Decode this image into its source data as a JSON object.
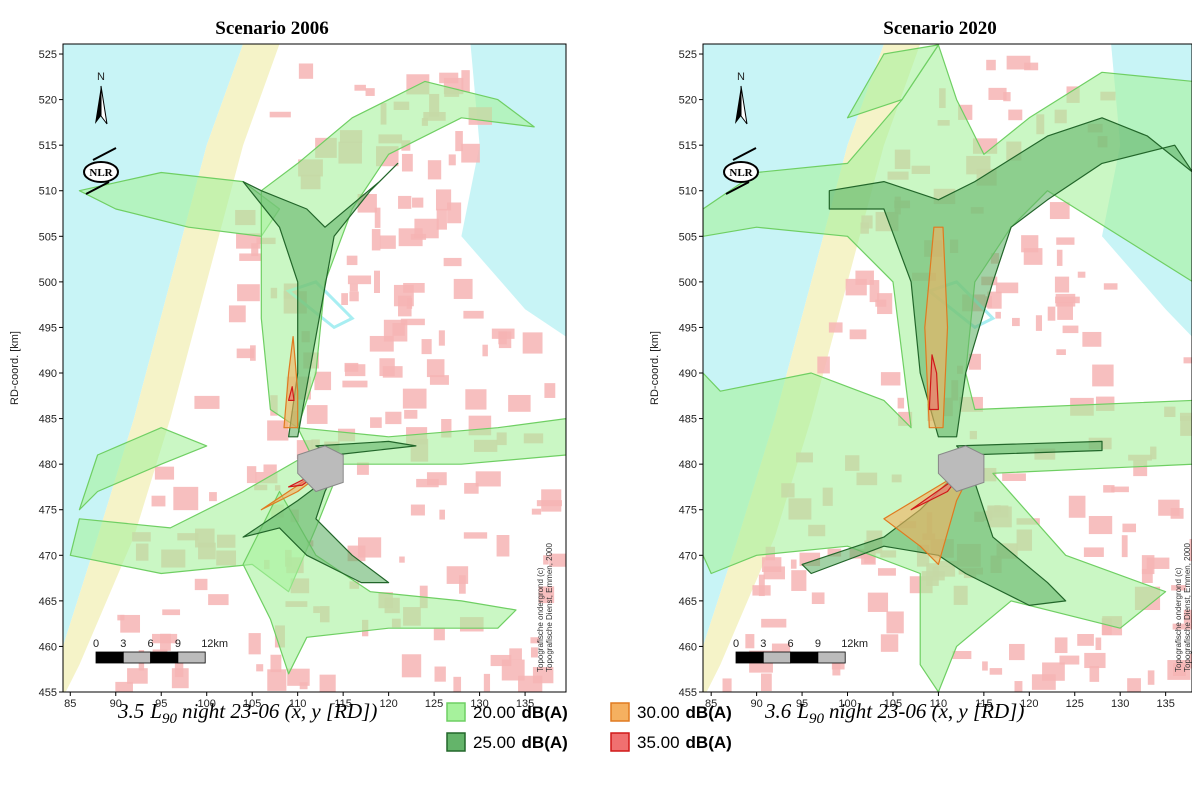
{
  "panels": [
    {
      "title": "Scenario 2006",
      "caption": {
        "number": "3.5",
        "symbol": "L",
        "subscript": "90",
        "text": "night 23-06 (x, y [RD])"
      },
      "xlim": [
        84.2,
        139.5
      ],
      "ylim": [
        455,
        526.1
      ],
      "xticks": [
        85,
        90,
        95,
        100,
        105,
        110,
        115,
        120,
        125,
        130,
        135
      ],
      "yticks": [
        455,
        460,
        465,
        470,
        475,
        480,
        485,
        490,
        495,
        500,
        505,
        510,
        515,
        520,
        525
      ],
      "ylabel": "RD-coord. [km]",
      "north": "N",
      "logo": "NLR",
      "scale_bar": [
        "0",
        "3",
        "6",
        "9",
        "12km"
      ],
      "copyright": [
        "Topografische ondergrond (c)",
        "Topografische Dienst, Emmen, 2000"
      ]
    },
    {
      "title": "Scenario 2020",
      "caption": {
        "number": "3.6",
        "symbol": "L",
        "subscript": "90",
        "text": "night 23-06 (x, y [RD])"
      },
      "xlim": [
        84.1,
        137.9
      ],
      "ylim": [
        455,
        526.1
      ],
      "xticks": [
        85,
        90,
        95,
        100,
        105,
        110,
        115,
        120,
        125,
        130,
        135
      ],
      "yticks": [
        455,
        460,
        465,
        470,
        475,
        480,
        485,
        490,
        495,
        500,
        505,
        510,
        515,
        520,
        525
      ],
      "ylabel": "RD-coord. [km]",
      "north": "N",
      "logo": "NLR",
      "scale_bar": [
        "0",
        "3",
        "6",
        "9",
        "12km"
      ],
      "copyright": [
        "Topografische ondergrond (c)",
        "Topografische Dienst, Emmen, 2000"
      ]
    }
  ],
  "legend": [
    {
      "label": "20.00",
      "unit": "dB(A)",
      "color": "#a6f29c",
      "edge": "#6fcf63"
    },
    {
      "label": "25.00",
      "unit": "dB(A)",
      "color": "#64b46a",
      "edge": "#22662a"
    },
    {
      "label": "30.00",
      "unit": "dB(A)",
      "color": "#f5b060",
      "edge": "#e07a20"
    },
    {
      "label": "35.00",
      "unit": "dB(A)",
      "color": "#f07070",
      "edge": "#d01818"
    }
  ]
}
